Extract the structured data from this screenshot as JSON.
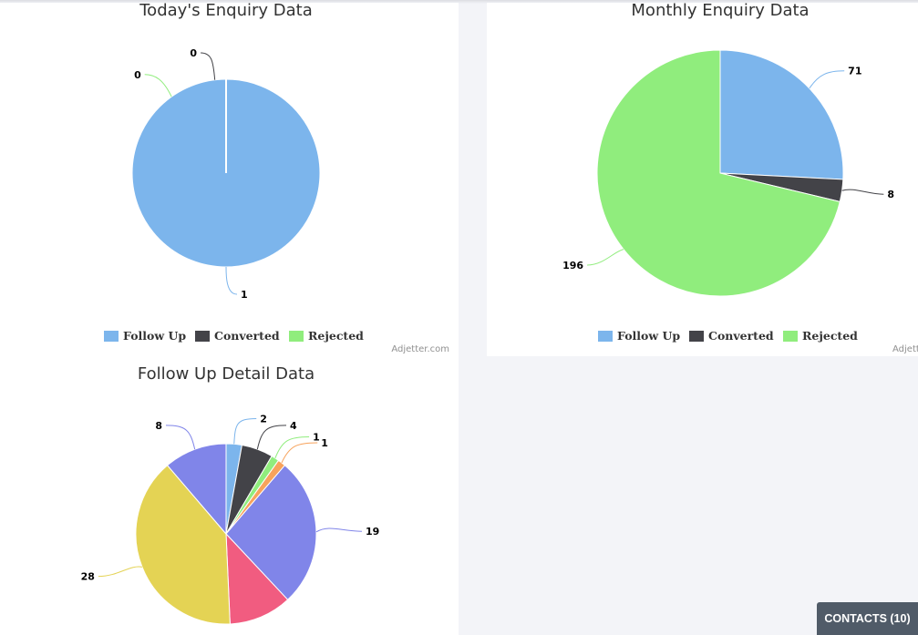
{
  "chart_data": [
    {
      "type": "pie",
      "title": "Today's Enquiry Data",
      "categories": [
        "Follow Up",
        "Converted",
        "Rejected"
      ],
      "values": [
        1,
        0,
        0
      ],
      "colors": [
        "#7cb5ec",
        "#434348",
        "#90ed7d"
      ],
      "legend": "bottom",
      "credit": "Adjetter.com"
    },
    {
      "type": "pie",
      "title": "Monthly Enquiry Data",
      "categories": [
        "Follow Up",
        "Converted",
        "Rejected"
      ],
      "values": [
        71,
        8,
        196
      ],
      "colors": [
        "#7cb5ec",
        "#434348",
        "#90ed7d"
      ],
      "legend": "bottom",
      "credit": "Adjetter.com"
    },
    {
      "type": "pie",
      "title": "Follow Up Detail Data",
      "values": [
        2,
        4,
        1,
        1,
        19,
        8,
        28,
        8
      ],
      "colors": [
        "#7cb5ec",
        "#434348",
        "#90ed7d",
        "#f7a35c",
        "#8085e9",
        "#f15c80",
        "#e4d354",
        "#8085e9"
      ],
      "value_labels_shown": [
        true,
        true,
        true,
        true,
        true,
        false,
        true,
        true
      ]
    }
  ],
  "contacts_button": "CONTACTS (10)"
}
